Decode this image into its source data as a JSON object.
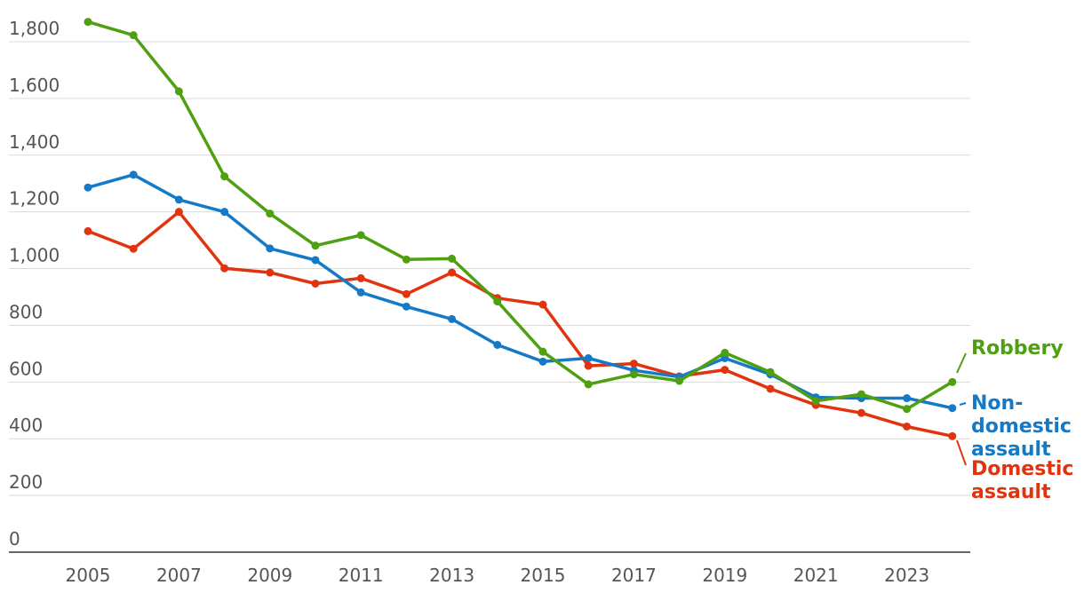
{
  "chart_data": {
    "type": "line",
    "title": "",
    "xlabel": "",
    "ylabel": "",
    "x": [
      2005,
      2006,
      2007,
      2008,
      2009,
      2010,
      2011,
      2012,
      2013,
      2014,
      2015,
      2016,
      2017,
      2018,
      2019,
      2020,
      2021,
      2022,
      2023,
      2024
    ],
    "x_ticks": [
      "2005",
      "2007",
      "2009",
      "2011",
      "2013",
      "2015",
      "2017",
      "2019",
      "2021",
      "2023"
    ],
    "y_ticks": [
      "0",
      "200",
      "400",
      "600",
      "800",
      "1,000",
      "1,200",
      "1,400",
      "1,600",
      "1,800"
    ],
    "ylim": [
      0,
      1800
    ],
    "grid": true,
    "series": [
      {
        "name": "Robbery",
        "label_lines": [
          "Robbery"
        ],
        "color": "#4fa011",
        "values": [
          1870,
          1823,
          1625,
          1325,
          1194,
          1081,
          1118,
          1032,
          1035,
          884,
          707,
          592,
          627,
          604,
          703,
          635,
          533,
          557,
          505,
          600
        ]
      },
      {
        "name": "Non-domestic assault",
        "label_lines": [
          "Non-",
          "domestic",
          "assault"
        ],
        "color": "#1479c6",
        "values": [
          1286,
          1331,
          1243,
          1200,
          1071,
          1030,
          916,
          866,
          822,
          731,
          672,
          684,
          641,
          618,
          684,
          627,
          546,
          543,
          543,
          508
        ]
      },
      {
        "name": "Domestic assault",
        "label_lines": [
          "Domestic",
          "assault"
        ],
        "color": "#e2330f",
        "values": [
          1132,
          1070,
          1200,
          1001,
          986,
          947,
          966,
          910,
          986,
          896,
          873,
          657,
          665,
          620,
          643,
          576,
          519,
          491,
          443,
          409
        ]
      }
    ]
  }
}
